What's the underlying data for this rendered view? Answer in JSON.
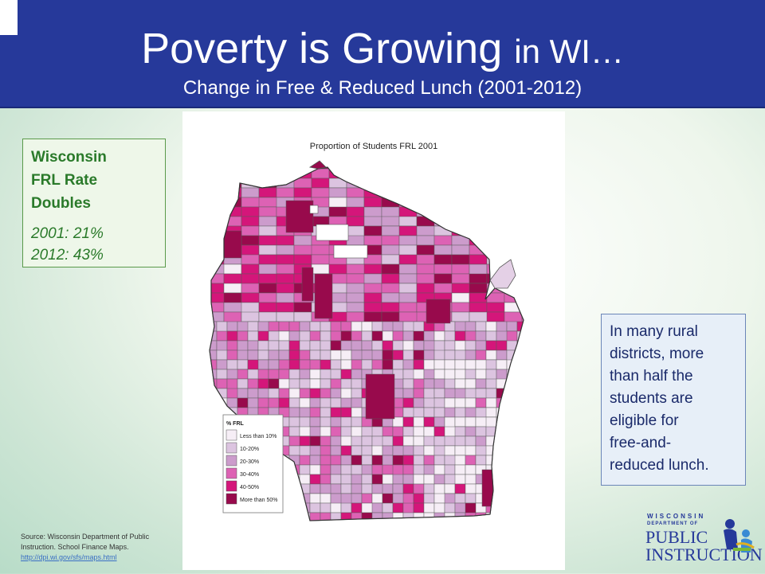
{
  "header": {
    "title_main": "Poverty is Growing",
    "title_tail": "in WI…",
    "subtitle": "Change in Free & Reduced Lunch (2001-2012)"
  },
  "stat_box": {
    "heading_lines": [
      "Wisconsin",
      "FRL Rate",
      "Doubles"
    ],
    "rate_2001": "2001: 21%",
    "rate_2012": "2012: 43%"
  },
  "info_box": {
    "lines": [
      "In many rural",
      "districts, more",
      "than half the",
      "students are",
      "eligible for",
      "free-and-",
      "reduced lunch."
    ]
  },
  "map": {
    "title": "Proportion of Students FRL 2001",
    "legend": {
      "title": "% FRL",
      "items": [
        {
          "label": "Less than 10%",
          "color": "#f6eef6"
        },
        {
          "label": "10-20%",
          "color": "#dcc4e0"
        },
        {
          "label": "20-30%",
          "color": "#cc9ccc"
        },
        {
          "label": "30-40%",
          "color": "#dd62b4"
        },
        {
          "label": "40-50%",
          "color": "#d4167a"
        },
        {
          "label": "More than 50%",
          "color": "#980a4c"
        }
      ]
    }
  },
  "source": {
    "text": "Source: Wisconsin Department of Public Instruction. School Finance Maps.",
    "link": "http://dpi.wi.gov/sfs/maps.html"
  },
  "logo": {
    "line1": "WISCONSIN",
    "line2": "DEPARTMENT OF",
    "line3": "PUBLIC",
    "line4": "INSTRUCTION"
  },
  "colors": {
    "header_bg": "#26399a",
    "stat_text": "#2a7a2a",
    "info_text": "#1a2a6a"
  }
}
